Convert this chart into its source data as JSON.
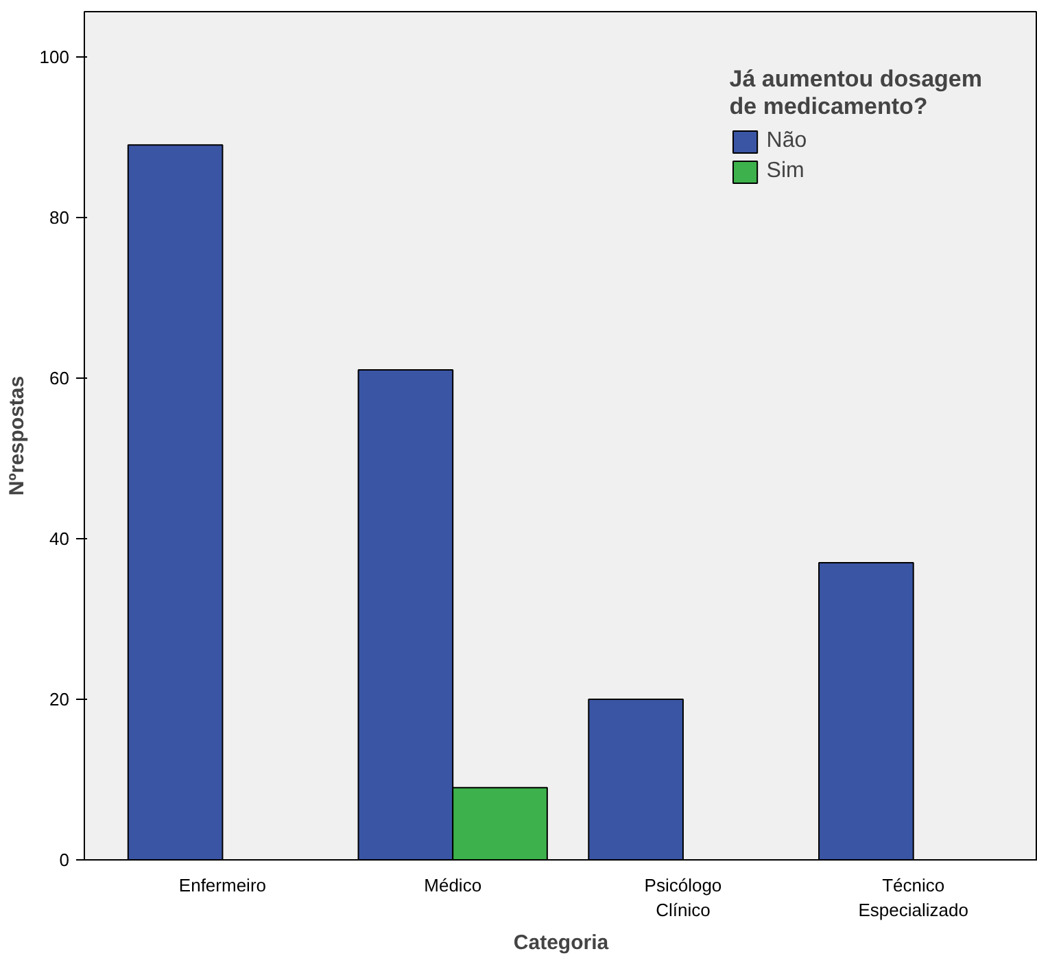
{
  "chart_data": {
    "type": "bar",
    "xlabel": "Categoria",
    "ylabel": "Nºrespostas",
    "legend_title": "Já aumentou dosagem de medicamento?",
    "categories": [
      "Enfermeiro",
      "Médico",
      "Psicólogo Clínico",
      "Técnico Especializado"
    ],
    "series": [
      {
        "name": "Não",
        "color": "#3a55a3",
        "values": [
          89,
          61,
          20,
          37
        ]
      },
      {
        "name": "Sim",
        "color": "#3db14b",
        "values": [
          null,
          9,
          null,
          null
        ]
      }
    ],
    "ylim": [
      0,
      105.6
    ],
    "yticks": [
      0,
      20,
      40,
      60,
      80,
      100
    ],
    "grid": false,
    "legend": "top right"
  }
}
